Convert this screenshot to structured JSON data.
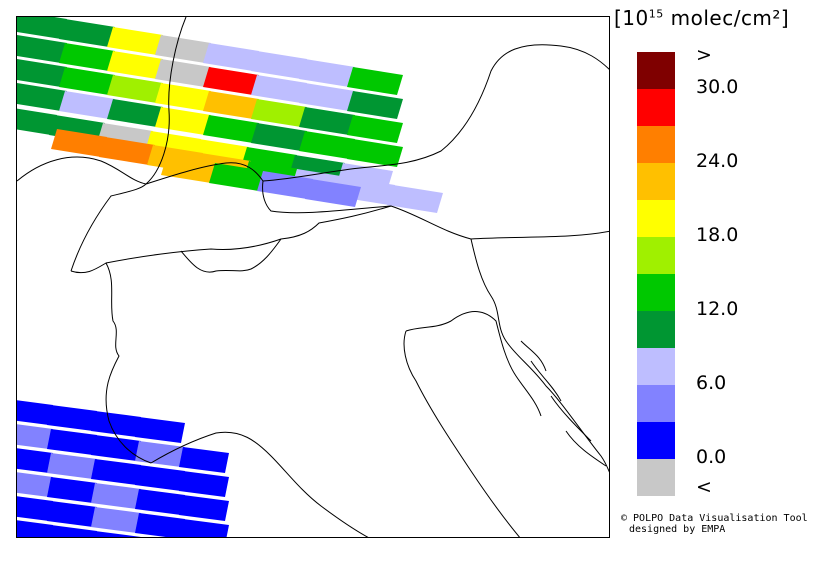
{
  "legend": {
    "unit_prefix": "[10",
    "unit_exp": "15",
    "unit_suffix": " molec/cm²]",
    "colors": [
      "#7f0000",
      "#ff0000",
      "#ff7f00",
      "#ffc000",
      "#ffff00",
      "#a0f000",
      "#00c800",
      "#009632",
      "#bebeff",
      "#8282ff",
      "#0000ff",
      "#c8c8c8"
    ],
    "ticks": [
      ">",
      "30.0",
      "24.0",
      "18.0",
      "12.0",
      "6.0",
      "0.0",
      "<"
    ]
  },
  "credits": {
    "line1": "© POLPO Data Visualisation Tool",
    "line2": "designed by EMPA"
  },
  "map_colors": {
    "border": "#000000",
    "swath_gap": "#ffffff"
  }
}
